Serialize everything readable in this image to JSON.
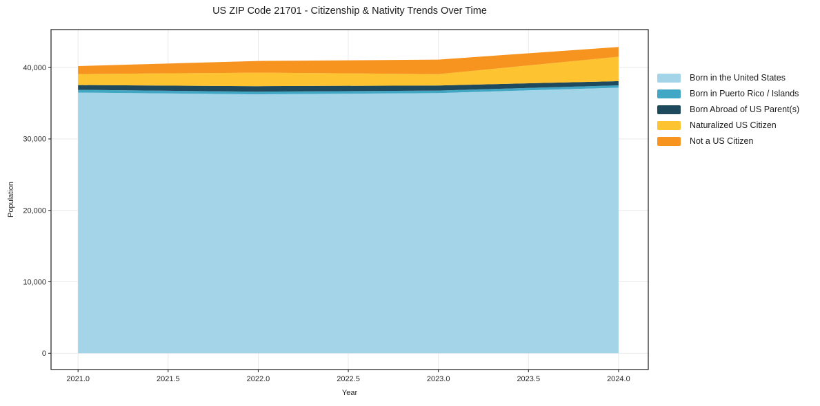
{
  "chart_data": {
    "type": "area",
    "stacked": true,
    "title": "US ZIP Code 21701 - Citizenship & Nativity Trends Over Time",
    "xlabel": "Year",
    "ylabel": "Population",
    "x": [
      2021,
      2022,
      2023,
      2024
    ],
    "series": [
      {
        "name": "Born in the United States",
        "color": "#a4d4e8",
        "values": [
          36500,
          36240,
          36430,
          37180
        ]
      },
      {
        "name": "Born in Puerto Rico / Islands",
        "color": "#41a7c5",
        "values": [
          380,
          385,
          340,
          330
        ]
      },
      {
        "name": "Born Abroad of US Parent(s)",
        "color": "#1f4a5e",
        "values": [
          670,
          770,
          720,
          580
        ]
      },
      {
        "name": "Naturalized US Citizen",
        "color": "#fdc330",
        "values": [
          1540,
          1880,
          1590,
          3420
        ]
      },
      {
        "name": "Not a US Citizen",
        "color": "#f7941f",
        "values": [
          1110,
          1645,
          2030,
          1360
        ]
      }
    ],
    "xticks": [
      2021.0,
      2021.5,
      2022.0,
      2022.5,
      2023.0,
      2023.5,
      2024.0
    ],
    "xtick_labels": [
      "2021.0",
      "2021.5",
      "2022.0",
      "2022.5",
      "2023.0",
      "2023.5",
      "2024.0"
    ],
    "yticks": [
      0,
      10000,
      20000,
      30000,
      40000
    ],
    "ytick_labels": [
      "0",
      "10,000",
      "20,000",
      "30,000",
      "40,000"
    ],
    "xlim": [
      2020.85,
      2024.165
    ],
    "ylim": [
      -2280,
      45310
    ],
    "grid": true,
    "legend_position": "right of plot"
  }
}
